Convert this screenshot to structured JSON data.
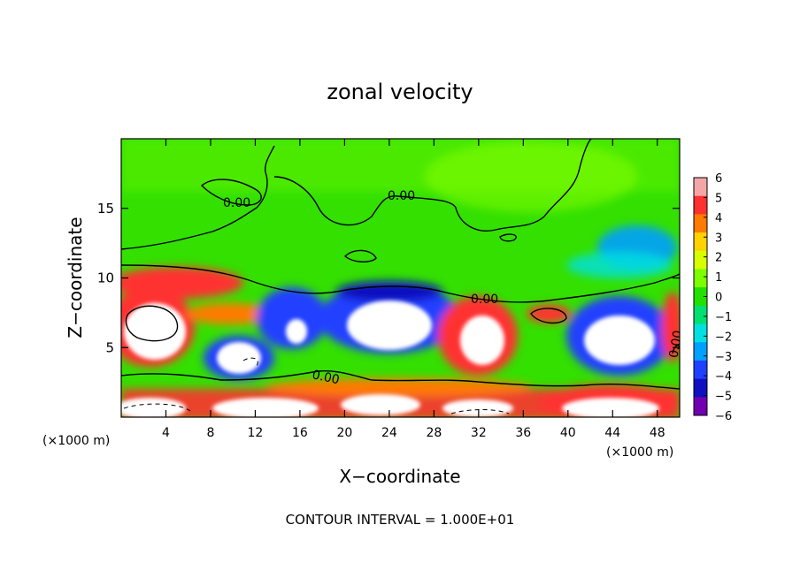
{
  "chart_data": {
    "type": "heatmap",
    "title": "zonal velocity",
    "xlabel": "X−coordinate",
    "ylabel": "Z−coordinate",
    "x_unit_left": "(×1000 m)",
    "x_unit_right": "(×1000 m)",
    "xlim": [
      0,
      50
    ],
    "ylim": [
      0,
      20
    ],
    "x_ticks": [
      4,
      8,
      12,
      16,
      20,
      24,
      28,
      32,
      36,
      40,
      44,
      48
    ],
    "y_ticks": [
      5,
      10,
      15
    ],
    "colorbar": {
      "ticks": [
        "6",
        "5",
        "4",
        "3",
        "2",
        "1",
        "0",
        "−1",
        "−2",
        "−3",
        "−4",
        "−5",
        "−6"
      ],
      "colors": [
        "#f4a6a6",
        "#ff3030",
        "#ff7a00",
        "#ffd200",
        "#d8ff00",
        "#7cff00",
        "#22e000",
        "#00e070",
        "#00e0e0",
        "#00a0ff",
        "#2040ff",
        "#1010c0",
        "#7000b0"
      ]
    },
    "contour_labels": [
      "0.00",
      "0.00",
      "0.00",
      "0.00",
      "0.00"
    ],
    "footer": "CONTOUR INTERVAL =  1.000E+01"
  },
  "colors": {
    "field_base": "#33e000",
    "positive_strong": "#ff3030",
    "negative_strong": "#2040ff",
    "saturated": "#ffffff"
  }
}
